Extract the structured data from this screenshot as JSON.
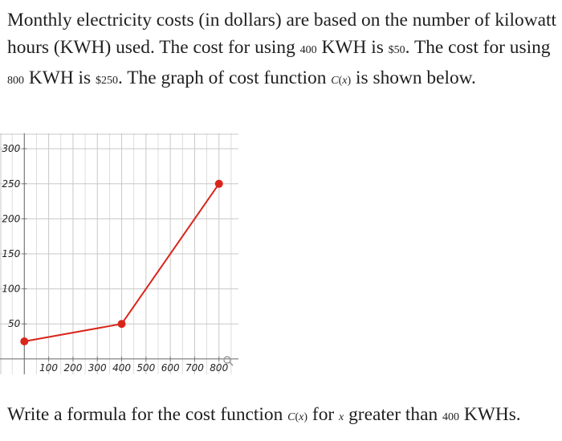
{
  "intro": {
    "t1": "Monthly electricity costs (in dollars) are based on the number of kilowatt hours (KWH) used. The cost for using ",
    "kwh1": "400",
    "t2": " KWH is ",
    "cost1": "$50",
    "t3": ". The cost for using ",
    "kwh2": "800",
    "t4": " KWH is ",
    "cost2": "$250",
    "t5": ". The graph of cost function ",
    "fn_name": "C",
    "fn_paren_open": "(",
    "fn_var": "x",
    "fn_paren_close": ")",
    "t6": " is shown below."
  },
  "question": {
    "t1": "Write a formula for the cost function ",
    "fn_name": "C",
    "fn_paren_open": "(",
    "fn_var": "x",
    "fn_paren_close": ")",
    "t2": " for ",
    "var": "x",
    "t3": " greater than ",
    "kwh": "400",
    "t4": " KWHs."
  },
  "colors": {
    "line": "#d9261c",
    "grid": "#c8c8c8",
    "axis": "#777777"
  },
  "icons": {
    "zoom": "magnifier-icon"
  },
  "chart_data": {
    "type": "line",
    "xlim": [
      -100,
      880
    ],
    "ylim": [
      -22,
      322
    ],
    "xticks": [
      100,
      200,
      300,
      400,
      500,
      600,
      700,
      800
    ],
    "yticks": [
      50,
      100,
      150,
      200,
      250,
      300
    ],
    "grid": true,
    "series": [
      {
        "x": [
          0,
          400,
          800
        ],
        "y": [
          25,
          50,
          250
        ]
      }
    ]
  }
}
